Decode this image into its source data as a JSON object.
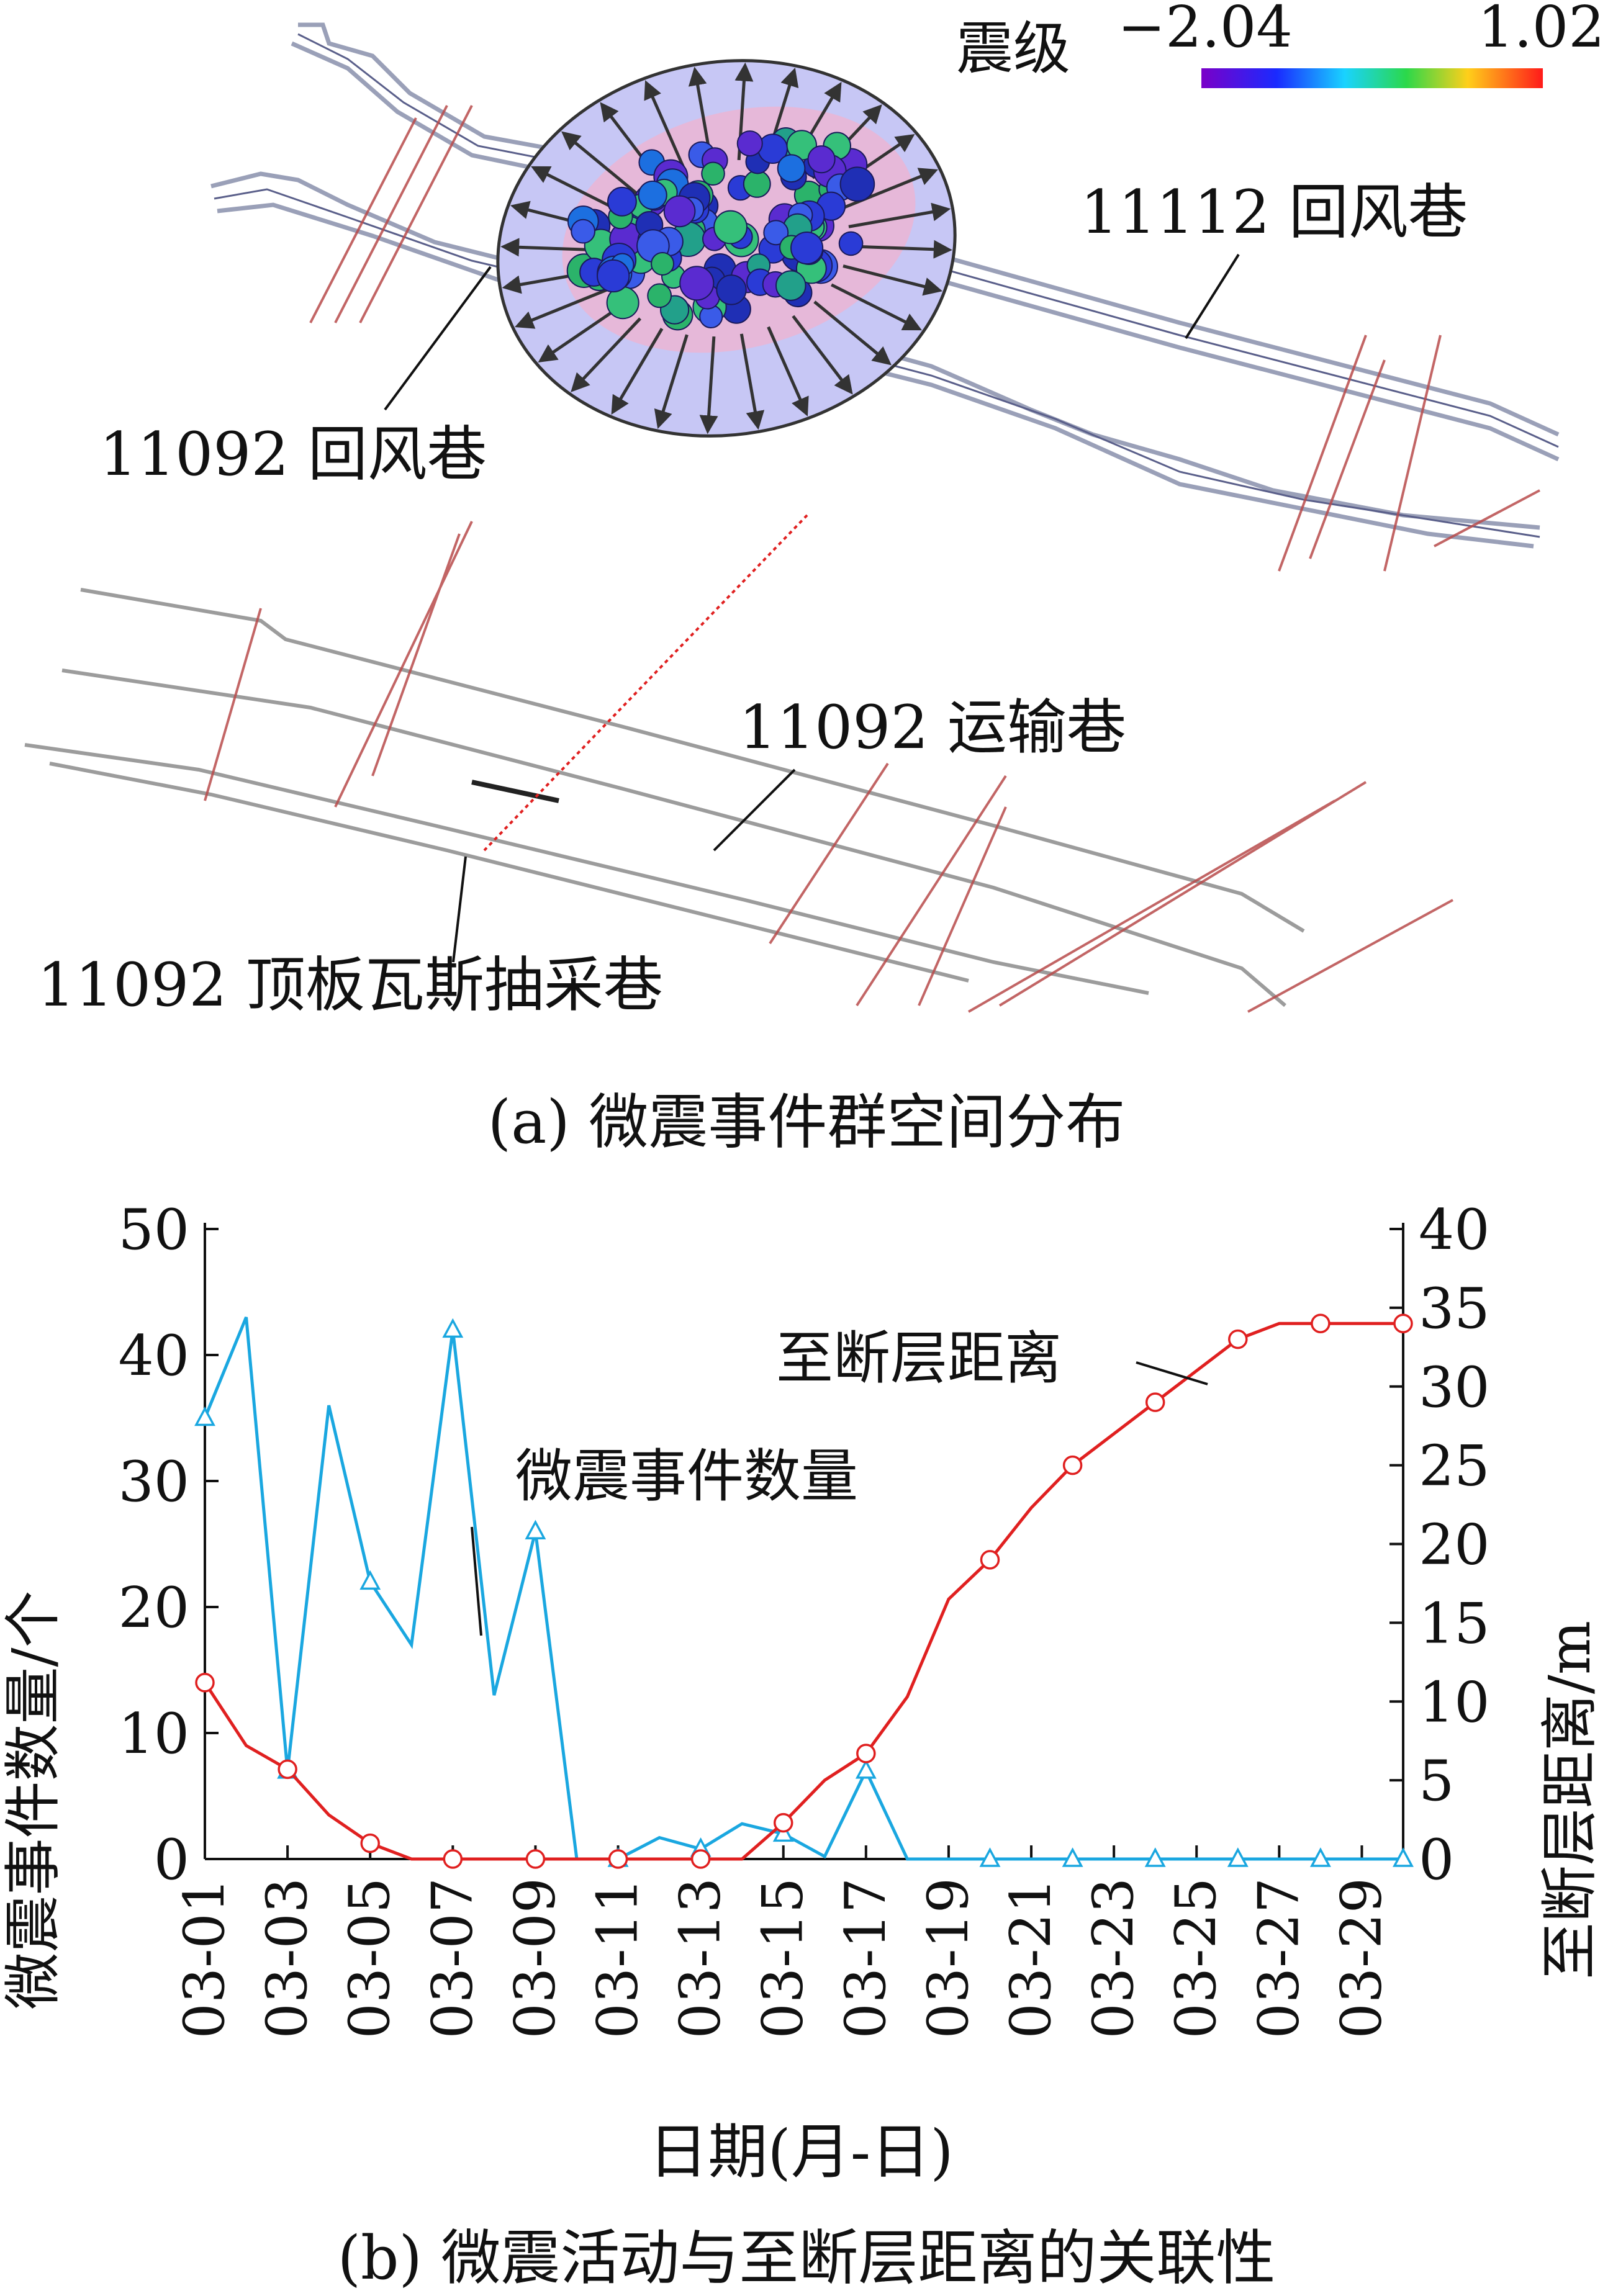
{
  "panel_a": {
    "caption": "(a)  微震事件群空间分布",
    "colorbar": {
      "label": "震级",
      "min": "−2.04",
      "max": "1.02"
    },
    "labels": {
      "roadway_11112": "11112 回风巷",
      "roadway_11092_return": "11092 回风巷",
      "roadway_11092_transport": "11092 运输巷",
      "roadway_11092_gas": "11092 顶板瓦斯抽采巷"
    }
  },
  "panel_b": {
    "caption": "(b)  微震活动与至断层距离的关联性"
  },
  "chart_data": {
    "type": "line",
    "xlabel": "日期(月-日)",
    "ylabel_left": "微震事件数量/个",
    "ylabel_right": "至断层距离/m",
    "ylim_left": [
      0,
      50
    ],
    "ylim_right": [
      0,
      40
    ],
    "yticks_left": [
      0,
      10,
      20,
      30,
      40,
      50
    ],
    "yticks_right": [
      0,
      5,
      10,
      15,
      20,
      25,
      30,
      35,
      40
    ],
    "xlim": [
      1,
      30
    ],
    "xtick_labels": [
      "03-01",
      "03-03",
      "03-05",
      "03-07",
      "03-09",
      "03-11",
      "03-13",
      "03-15",
      "03-17",
      "03-19",
      "03-21",
      "03-23",
      "03-25",
      "03-27",
      "03-29"
    ],
    "grid": false,
    "series": [
      {
        "name": "微震事件数量",
        "axis": "left",
        "color": "#1aa7e0",
        "marker": "triangle",
        "x": [
          1,
          2,
          3,
          4,
          5,
          6,
          7,
          8,
          9,
          10,
          11,
          12,
          13,
          14,
          15,
          16,
          17,
          18,
          19,
          20,
          21,
          22,
          23,
          24,
          25,
          26,
          27,
          28,
          29,
          30
        ],
        "y": [
          35,
          43,
          7,
          36,
          22,
          17,
          42,
          13,
          26,
          0,
          0,
          1.7,
          0.8,
          2.8,
          2,
          0.2,
          7,
          0,
          0,
          0,
          0,
          0,
          0,
          0,
          0,
          0,
          0,
          0,
          0,
          0
        ],
        "marker_x": [
          1,
          3,
          5,
          7,
          9,
          11,
          13,
          15,
          17,
          20,
          22,
          24,
          26,
          28,
          30
        ]
      },
      {
        "name": "至断层距离",
        "axis": "right",
        "color": "#e02020",
        "marker": "circle",
        "x": [
          1,
          2,
          3,
          4,
          5,
          6,
          7,
          8,
          9,
          10,
          11,
          12,
          13,
          14,
          15,
          16,
          17,
          18,
          19,
          20,
          21,
          22,
          23,
          24,
          25,
          26,
          27,
          28,
          29,
          30
        ],
        "y": [
          11.2,
          7.2,
          5.7,
          2.8,
          1,
          0,
          0,
          0,
          0,
          0,
          0,
          0,
          0,
          0,
          2.3,
          5,
          6.7,
          10.3,
          16.5,
          19,
          22.3,
          25,
          27,
          29,
          31,
          33,
          34,
          34,
          34,
          34
        ],
        "marker_x": [
          1,
          3,
          5,
          7,
          9,
          11,
          13,
          15,
          17,
          20,
          22,
          24,
          26,
          28,
          30
        ]
      }
    ]
  }
}
